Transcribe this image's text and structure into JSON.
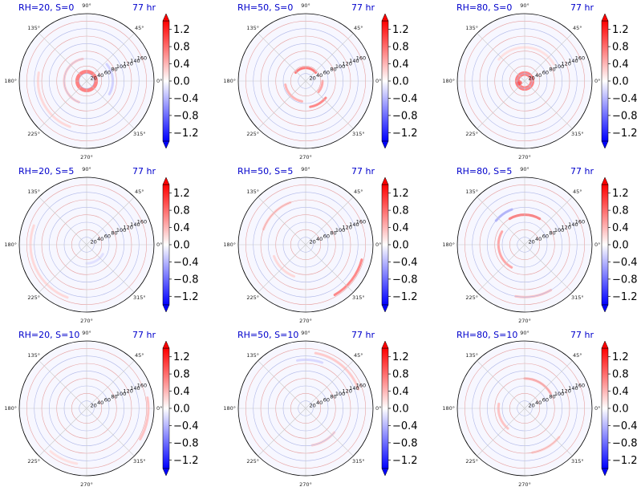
{
  "chart_data": {
    "type": "heatmap",
    "projection": "polar",
    "grid": true,
    "rows": [
      "S=0",
      "S=5",
      "S=10"
    ],
    "cols": [
      "RH=20",
      "RH=50",
      "RH=80"
    ],
    "time_label": "77 hr",
    "angle_ticks": [
      "0°",
      "45°",
      "90°",
      "135°",
      "180°",
      "225°",
      "270°",
      "315°"
    ],
    "radial_ticks": [
      20,
      40,
      60,
      80,
      100,
      120,
      140,
      160
    ],
    "rmax": 180,
    "colorbar": {
      "cmap": "bwr",
      "vmin": -1.4,
      "vmax": 1.4,
      "ticks": [
        1.2,
        0.8,
        0.4,
        0.0,
        -0.4,
        -0.8,
        -1.2
      ],
      "tick_labels": [
        "1.2",
        "0.8",
        "0.4",
        "0.0",
        "−0.4",
        "−0.8",
        "−1.2"
      ],
      "extend": "both"
    },
    "panels": [
      {
        "title": "RH=20, S=0",
        "time": "77 hr",
        "features": [
          {
            "shape": "ring",
            "r": 25,
            "width": 10,
            "value": 0.8
          },
          {
            "shape": "arc",
            "r": 60,
            "from_deg": 100,
            "to_deg": 250,
            "value": 0.35
          },
          {
            "shape": "arc",
            "r": 130,
            "from_deg": 170,
            "to_deg": 250,
            "value": 0.25
          },
          {
            "shape": "arc",
            "r": 70,
            "from_deg": 330,
            "to_deg": 40,
            "value": -0.3
          }
        ]
      },
      {
        "title": "RH=50, S=0",
        "time": "77 hr",
        "features": [
          {
            "shape": "arc",
            "r": 35,
            "from_deg": 40,
            "to_deg": 140,
            "value": 0.9
          },
          {
            "shape": "arc",
            "r": 55,
            "from_deg": 190,
            "to_deg": 260,
            "value": 0.5
          },
          {
            "shape": "arc",
            "r": 70,
            "from_deg": 280,
            "to_deg": 320,
            "value": 0.8
          },
          {
            "shape": "arc",
            "r": 45,
            "from_deg": 320,
            "to_deg": 360,
            "value": 0.6
          }
        ]
      },
      {
        "title": "RH=80, S=0",
        "time": "77 hr",
        "features": [
          {
            "shape": "ring",
            "r": 20,
            "width": 12,
            "value": 0.8
          },
          {
            "shape": "blob",
            "r": 15,
            "theta_deg": 200,
            "size": 12,
            "value": 1.0
          },
          {
            "shape": "arc",
            "r": 90,
            "from_deg": 30,
            "to_deg": 140,
            "value": 0.2
          }
        ]
      },
      {
        "title": "RH=20, S=5",
        "time": "77 hr",
        "features": [
          {
            "shape": "arc",
            "r": 150,
            "from_deg": 160,
            "to_deg": 250,
            "value": 0.25
          },
          {
            "shape": "arc",
            "r": 50,
            "from_deg": 270,
            "to_deg": 330,
            "value": -0.2
          }
        ]
      },
      {
        "title": "RH=50, S=5",
        "time": "77 hr",
        "features": [
          {
            "shape": "arc",
            "r": 155,
            "from_deg": 300,
            "to_deg": 345,
            "value": 0.8
          },
          {
            "shape": "arc",
            "r": 120,
            "from_deg": 110,
            "to_deg": 160,
            "value": 0.35
          },
          {
            "shape": "arc",
            "r": 90,
            "from_deg": 200,
            "to_deg": 250,
            "value": 0.25
          }
        ]
      },
      {
        "title": "RH=80, S=5",
        "time": "77 hr",
        "features": [
          {
            "shape": "arc",
            "r": 80,
            "from_deg": 60,
            "to_deg": 120,
            "value": 0.9
          },
          {
            "shape": "arc",
            "r": 70,
            "from_deg": 150,
            "to_deg": 240,
            "value": 0.6
          },
          {
            "shape": "arc",
            "r": 100,
            "from_deg": 110,
            "to_deg": 140,
            "value": -0.5
          },
          {
            "shape": "arc",
            "r": 140,
            "from_deg": 260,
            "to_deg": 300,
            "value": 0.4
          }
        ]
      },
      {
        "title": "RH=20, S=10",
        "time": "77 hr",
        "features": [
          {
            "shape": "arc",
            "r": 165,
            "from_deg": 330,
            "to_deg": 10,
            "value": 0.4
          },
          {
            "shape": "arc",
            "r": 150,
            "from_deg": 230,
            "to_deg": 260,
            "value": 0.2
          }
        ]
      },
      {
        "title": "RH=50, S=10",
        "time": "77 hr",
        "features": [
          {
            "shape": "arc",
            "r": 150,
            "from_deg": 20,
            "to_deg": 80,
            "value": 0.35
          },
          {
            "shape": "arc",
            "r": 100,
            "from_deg": 280,
            "to_deg": 320,
            "value": 0.3
          },
          {
            "shape": "arc",
            "r": 130,
            "from_deg": 70,
            "to_deg": 100,
            "value": -0.25
          }
        ]
      },
      {
        "title": "RH=80, S=10",
        "time": "77 hr",
        "features": [
          {
            "shape": "arc",
            "r": 80,
            "from_deg": 30,
            "to_deg": 90,
            "value": 0.5
          },
          {
            "shape": "arc",
            "r": 70,
            "from_deg": 170,
            "to_deg": 230,
            "value": 0.4
          },
          {
            "shape": "arc",
            "r": 120,
            "from_deg": 280,
            "to_deg": 320,
            "value": 0.3
          }
        ]
      }
    ]
  }
}
